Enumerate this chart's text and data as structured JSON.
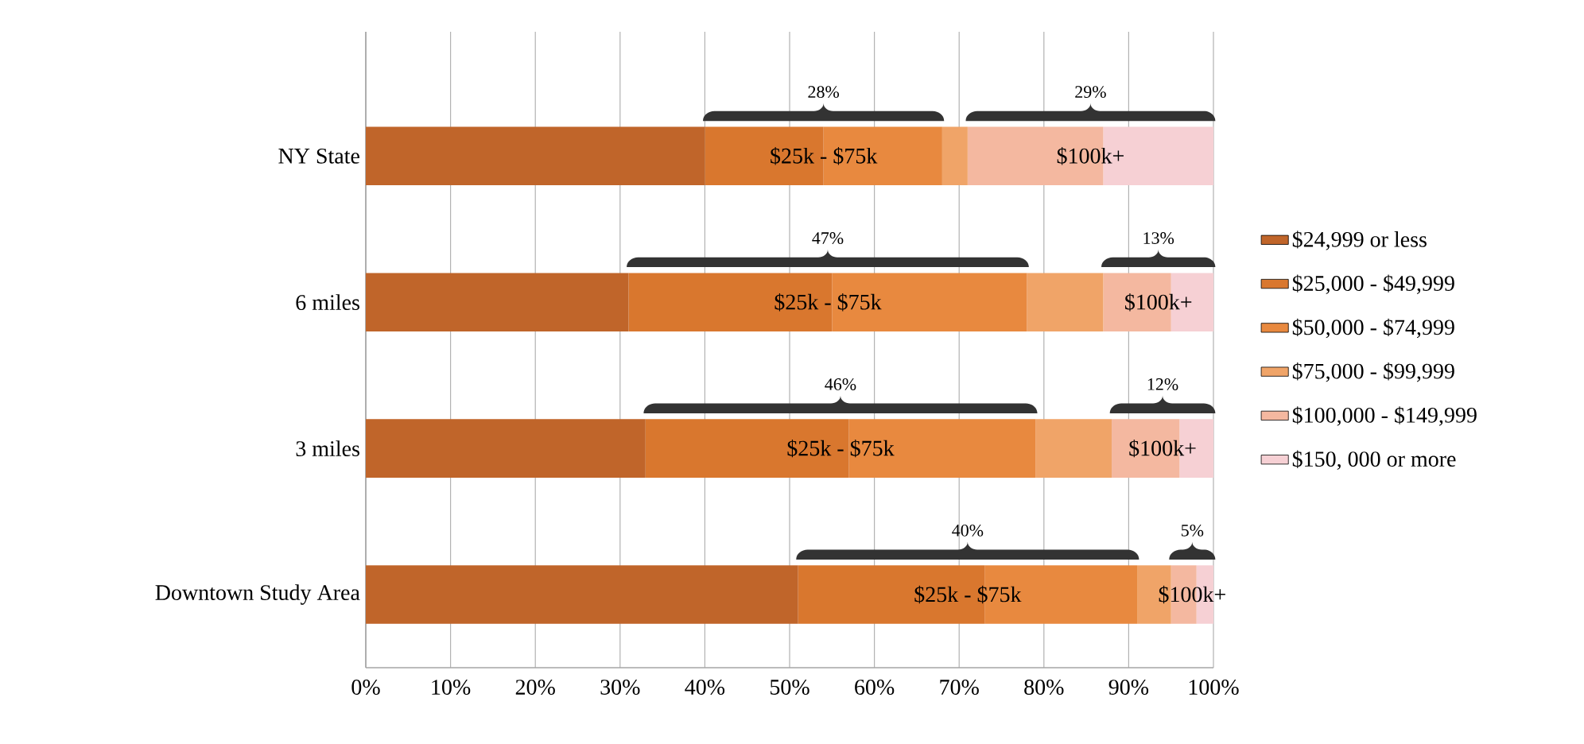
{
  "chart_data": {
    "type": "bar",
    "orientation": "horizontal",
    "stacked": true,
    "categories": [
      "NY State",
      "6 miles",
      "3 miles",
      "Downtown Study Area"
    ],
    "series": [
      {
        "name": "$24,999 or less",
        "color": "#c0652a",
        "values": [
          40,
          31,
          33,
          51
        ]
      },
      {
        "name": "$25,000 - $49,999",
        "color": "#d9772e",
        "values": [
          14,
          24,
          24,
          22
        ]
      },
      {
        "name": "$50,000 - $74,999",
        "color": "#e8893f",
        "values": [
          14,
          23,
          22,
          18
        ]
      },
      {
        "name": "$75,000 - $99,999",
        "color": "#f0a468",
        "values": [
          3,
          9,
          9,
          4
        ]
      },
      {
        "name": "$100,000 - $149,999",
        "color": "#f4b8a0",
        "values": [
          16,
          8,
          8,
          3
        ]
      },
      {
        "name": "$150, 000 or more",
        "color": "#f6d0d4",
        "values": [
          13,
          5,
          4,
          2
        ]
      }
    ],
    "xlim": [
      0,
      100
    ],
    "xticks": [
      {
        "value": 0,
        "label": "0%"
      },
      {
        "value": 10,
        "label": "10%"
      },
      {
        "value": 20,
        "label": "20%"
      },
      {
        "value": 30,
        "label": "30%"
      },
      {
        "value": 40,
        "label": "40%"
      },
      {
        "value": 50,
        "label": "50%"
      },
      {
        "value": 60,
        "label": "60%"
      },
      {
        "value": 70,
        "label": "70%"
      },
      {
        "value": 80,
        "label": "80%"
      },
      {
        "value": 90,
        "label": "90%"
      },
      {
        "value": 100,
        "label": "100%"
      }
    ],
    "grid": "x",
    "legend": "right",
    "annotations": [
      "28%",
      "29%",
      "$25k - $75k",
      "$100k+",
      "47%",
      "13%",
      "$25k - $75k",
      "$100k+",
      "46%",
      "12%",
      "$25k - $75k",
      "$100k+",
      "40%",
      "5%",
      "$25k - $75k",
      "$100k+"
    ]
  }
}
